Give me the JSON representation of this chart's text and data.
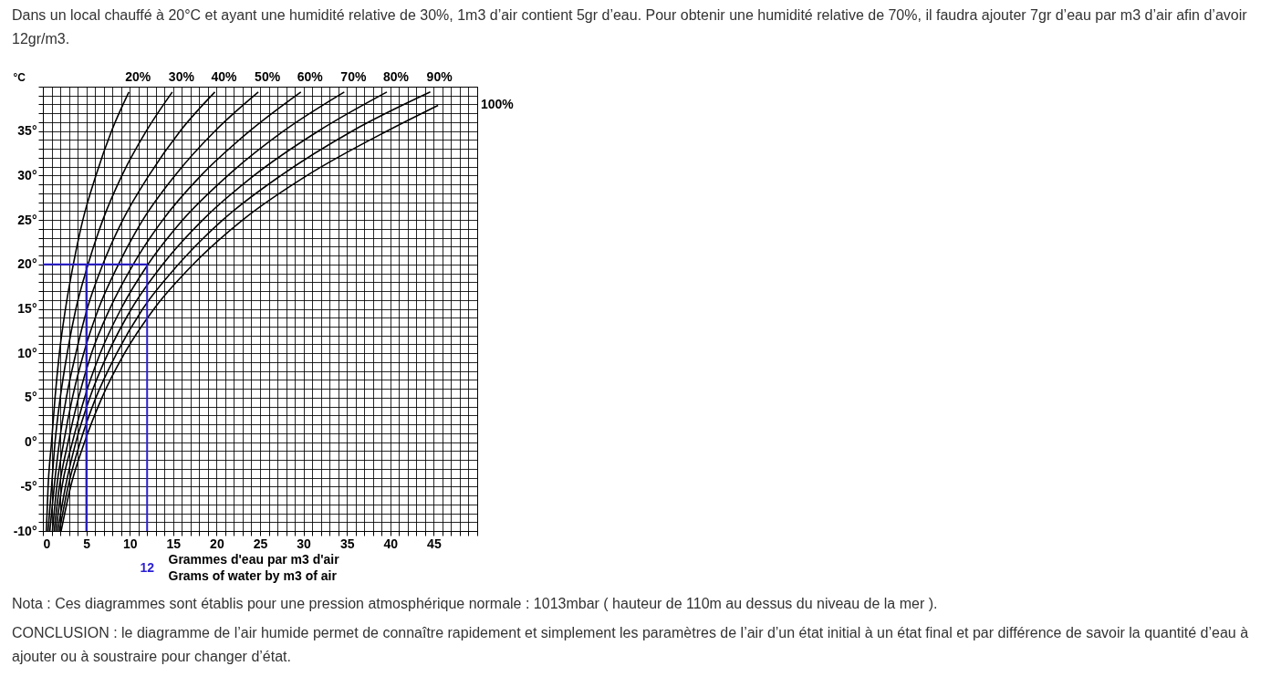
{
  "chart_data": {
    "type": "line",
    "title": "Dans un local chauffé à 20°C et ayant une humidité relative de 30%, 1m3 d’air contient 5gr d’eau. Pour obtenir une humidité relative de 70%, il faudra ajouter 7gr d’eau par m3 d’air afin d’avoir 12gr/m3.",
    "xlabel": "Grammes d'eau par m3 d'air\nGrams of water by m3 of air",
    "ylabel": "°C",
    "grid": true,
    "xlim": [
      0,
      50
    ],
    "ylim": [
      -10,
      40
    ],
    "xticks": [
      0,
      {
        "value": 1,
        "label": null
      },
      {
        "value": 2,
        "label": null
      },
      {
        "value": 3,
        "label": null
      },
      {
        "value": 4,
        "label": null
      },
      5,
      {
        "value": 6,
        "label": null
      },
      {
        "value": 7,
        "label": null
      },
      {
        "value": 8,
        "label": null
      },
      {
        "value": 9,
        "label": null
      },
      10,
      {
        "value": 11,
        "label": null
      },
      {
        "value": 12,
        "label": null
      },
      {
        "value": 13,
        "label": null
      },
      {
        "value": 14,
        "label": null
      },
      15,
      {
        "value": 16,
        "label": null
      },
      {
        "value": 17,
        "label": null
      },
      {
        "value": 18,
        "label": null
      },
      {
        "value": 19,
        "label": null
      },
      20,
      {
        "value": 21,
        "label": null
      },
      {
        "value": 22,
        "label": null
      },
      {
        "value": 23,
        "label": null
      },
      {
        "value": 24,
        "label": null
      },
      25,
      {
        "value": 26,
        "label": null
      },
      {
        "value": 27,
        "label": null
      },
      {
        "value": 28,
        "label": null
      },
      {
        "value": 29,
        "label": null
      },
      30,
      {
        "value": 31,
        "label": null
      },
      {
        "value": 32,
        "label": null
      },
      {
        "value": 33,
        "label": null
      },
      {
        "value": 34,
        "label": null
      },
      35,
      {
        "value": 36,
        "label": null
      },
      {
        "value": 37,
        "label": null
      },
      {
        "value": 38,
        "label": null
      },
      {
        "value": 39,
        "label": null
      },
      40,
      {
        "value": 41,
        "label": null
      },
      {
        "value": 42,
        "label": null
      },
      {
        "value": 43,
        "label": null
      },
      {
        "value": 44,
        "label": null
      },
      45,
      {
        "value": 46,
        "label": null
      },
      {
        "value": 47,
        "label": null
      },
      {
        "value": 48,
        "label": null
      },
      {
        "value": 49,
        "label": null
      },
      {
        "value": 50,
        "label": null
      }
    ],
    "yticks": [
      {
        "value": -10,
        "label": "-10°"
      },
      {
        "value": -9,
        "label": null
      },
      {
        "value": -8,
        "label": null
      },
      {
        "value": -7,
        "label": null
      },
      {
        "value": -6,
        "label": null
      },
      {
        "value": -5,
        "label": "-5°"
      },
      {
        "value": -4,
        "label": null
      },
      {
        "value": -3,
        "label": null
      },
      {
        "value": -2,
        "label": null
      },
      {
        "value": -1,
        "label": null
      },
      {
        "value": 0,
        "label": "0°"
      },
      {
        "value": 1,
        "label": null
      },
      {
        "value": 2,
        "label": null
      },
      {
        "value": 3,
        "label": null
      },
      {
        "value": 4,
        "label": null
      },
      {
        "value": 5,
        "label": "5°"
      },
      {
        "value": 6,
        "label": null
      },
      {
        "value": 7,
        "label": null
      },
      {
        "value": 8,
        "label": null
      },
      {
        "value": 9,
        "label": null
      },
      {
        "value": 10,
        "label": "10°"
      },
      {
        "value": 11,
        "label": null
      },
      {
        "value": 12,
        "label": null
      },
      {
        "value": 13,
        "label": null
      },
      {
        "value": 14,
        "label": null
      },
      {
        "value": 15,
        "label": "15°"
      },
      {
        "value": 16,
        "label": null
      },
      {
        "value": 17,
        "label": null
      },
      {
        "value": 18,
        "label": null
      },
      {
        "value": 19,
        "label": null
      },
      {
        "value": 20,
        "label": "20°"
      },
      {
        "value": 21,
        "label": null
      },
      {
        "value": 22,
        "label": null
      },
      {
        "value": 23,
        "label": null
      },
      {
        "value": 24,
        "label": null
      },
      {
        "value": 25,
        "label": "25°"
      },
      {
        "value": 26,
        "label": null
      },
      {
        "value": 27,
        "label": null
      },
      {
        "value": 28,
        "label": null
      },
      {
        "value": 29,
        "label": null
      },
      {
        "value": 30,
        "label": "30°"
      },
      {
        "value": 31,
        "label": null
      },
      {
        "value": 32,
        "label": null
      },
      {
        "value": 33,
        "label": null
      },
      {
        "value": 34,
        "label": null
      },
      {
        "value": 35,
        "label": "35°"
      },
      {
        "value": 36,
        "label": null
      },
      {
        "value": 37,
        "label": null
      },
      {
        "value": 38,
        "label": null
      },
      {
        "value": 39,
        "label": null
      },
      {
        "value": 40,
        "label": null
      }
    ],
    "series": [
      {
        "name": "20%",
        "color": "#000000",
        "x": [
          0.4,
          0.6,
          1.0,
          1.4,
          1.9,
          2.6,
          3.5,
          4.6,
          6.1,
          7.9,
          9.9
        ],
        "values": [
          -10,
          -5,
          0,
          5,
          10,
          15,
          20,
          25,
          30,
          35,
          39.4
        ]
      },
      {
        "name": "30%",
        "color": "#000000",
        "x": [
          0.6,
          1.0,
          1.4,
          2.0,
          2.8,
          3.8,
          5.2,
          6.9,
          9.1,
          11.9,
          14.9
        ],
        "values": [
          -10,
          -5,
          0,
          5,
          10,
          15,
          20,
          25,
          30,
          35,
          39.4
        ]
      },
      {
        "name": "40%",
        "color": "#000000",
        "x": [
          0.8,
          1.3,
          1.9,
          2.7,
          3.8,
          5.1,
          6.9,
          9.2,
          12.2,
          15.8,
          19.8
        ],
        "values": [
          -10,
          -5,
          0,
          5,
          10,
          15,
          20,
          25,
          30,
          35,
          39.4
        ]
      },
      {
        "name": "50%",
        "color": "#000000",
        "x": [
          1.1,
          1.6,
          2.4,
          3.4,
          4.7,
          6.4,
          8.7,
          11.5,
          15.2,
          19.8,
          24.8
        ],
        "values": [
          -10,
          -5,
          0,
          5,
          10,
          15,
          20,
          25,
          30,
          35,
          39.4
        ]
      },
      {
        "name": "60%",
        "color": "#000000",
        "x": [
          1.3,
          1.9,
          2.9,
          4.1,
          5.6,
          7.7,
          10.4,
          13.8,
          18.2,
          23.8,
          29.7
        ],
        "values": [
          -10,
          -5,
          0,
          5,
          10,
          15,
          20,
          25,
          30,
          35,
          39.4
        ]
      },
      {
        "name": "70%",
        "color": "#000000",
        "x": [
          1.5,
          2.2,
          3.4,
          4.8,
          6.6,
          9.0,
          12.1,
          16.1,
          21.3,
          27.7,
          34.7
        ],
        "values": [
          -10,
          -5,
          0,
          5,
          10,
          15,
          20,
          25,
          30,
          35,
          39.4
        ]
      },
      {
        "name": "80%",
        "color": "#000000",
        "x": [
          1.7,
          2.6,
          3.8,
          5.4,
          7.5,
          10.2,
          13.8,
          18.4,
          24.3,
          31.7,
          39.6
        ],
        "values": [
          -10,
          -5,
          0,
          5,
          10,
          15,
          20,
          25,
          30,
          35,
          39.4
        ]
      },
      {
        "name": "90%",
        "color": "#000000",
        "x": [
          1.9,
          2.9,
          4.3,
          6.1,
          8.5,
          11.5,
          15.6,
          20.7,
          27.4,
          35.6,
          44.6
        ],
        "values": [
          -10,
          -5,
          0,
          5,
          10,
          15,
          20,
          25,
          30,
          35,
          39.4
        ]
      },
      {
        "name": "100%",
        "color": "#000000",
        "x": [
          2.1,
          3.2,
          4.8,
          6.8,
          9.4,
          12.8,
          17.3,
          23.0,
          30.4,
          39.6,
          45.5
        ],
        "values": [
          -10,
          -5,
          0,
          5,
          10,
          15,
          20,
          25,
          30,
          35,
          37.9
        ]
      },
      {
        "color": "#2a1fd2",
        "x": [
          0,
          12
        ],
        "values": [
          20,
          20
        ]
      },
      {
        "color": "#2a1fd2",
        "x": [
          5,
          5
        ],
        "values": [
          -10,
          20
        ]
      },
      {
        "color": "#2a1fd2",
        "x": [
          12,
          12
        ],
        "values": [
          -10,
          20
        ]
      }
    ],
    "annotations": [
      {
        "text": "12",
        "x": 12,
        "y": -10
      },
      "Nota : Ces diagrammes sont établis pour une pression atmosphérique normale : 1013mbar ( hauteur de 110m au dessus du niveau de la mer ).",
      "CONCLUSION : le diagramme de l’air humide permet de connaître rapidement et simplement les paramètres de l’air d’un état initial à un état final et par différence de savoir la quantité d’eau à ajouter ou à soustraire pour changer d’état."
    ]
  }
}
